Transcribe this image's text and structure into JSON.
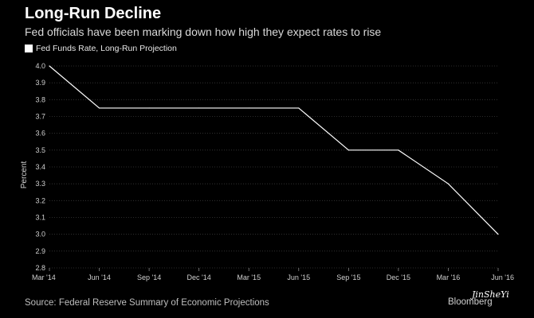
{
  "brand": {
    "source": "Source: Federal Reserve Summary of Economic Projections",
    "logo": "Bloomberg",
    "watermark": "JinSheYi"
  },
  "colors": {
    "background": "#000000",
    "line": "#ffffff",
    "grid": "#3a3a3a"
  },
  "chart_data": {
    "type": "line",
    "title": "Long-Run Decline",
    "subtitle": "Fed officials have been marking down how high they expect rates to rise",
    "ylabel": "Percent",
    "xlabel": "",
    "ylim": [
      2.8,
      4.0
    ],
    "yticks": [
      "4.0",
      "3.9",
      "3.8",
      "3.7",
      "3.6",
      "3.5",
      "3.4",
      "3.3",
      "3.2",
      "3.1",
      "3.0",
      "2.9",
      "2.8"
    ],
    "categories": [
      "Mar '14",
      "Jun '14",
      "Sep '14",
      "Dec '14",
      "Mar '15",
      "Jun '15",
      "Sep '15",
      "Dec '15",
      "Mar '16",
      "Jun '16"
    ],
    "series": [
      {
        "name": "Fed Funds Rate, Long-Run Projection",
        "values": [
          4.0,
          3.75,
          3.75,
          3.75,
          3.75,
          3.75,
          3.5,
          3.5,
          3.3,
          3.0
        ]
      }
    ],
    "grid": true,
    "legend": "top-left"
  }
}
